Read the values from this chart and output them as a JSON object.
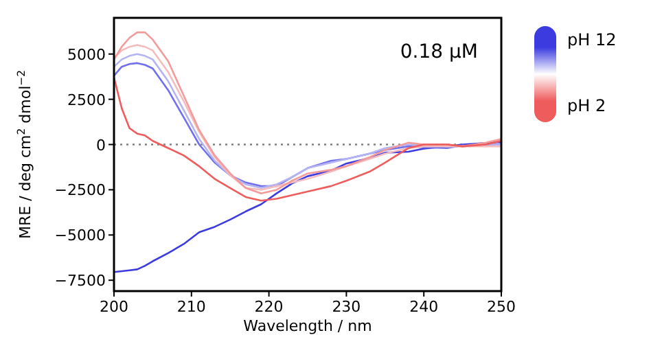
{
  "chart_data": {
    "type": "line",
    "xlabel": "Wavelength / nm",
    "ylabel": "MRE / deg cm$^{2}$ dmol$^{−2}$",
    "annotations": [
      "0.18 µM"
    ],
    "xlim": [
      200,
      250
    ],
    "xticks": [
      200,
      210,
      220,
      230,
      240,
      250
    ],
    "ylim": [
      -8100,
      7000
    ],
    "yticks": [
      {
        "value": -7500,
        "label": "−7500"
      },
      {
        "value": -5000,
        "label": "−5000"
      },
      {
        "value": -2500,
        "label": "−2500"
      },
      0,
      2500,
      5000
    ],
    "x": [
      200,
      201,
      202,
      203,
      204,
      205,
      207,
      209,
      211,
      213,
      215,
      217,
      219,
      221,
      223,
      225,
      228,
      230,
      233,
      235,
      238,
      240,
      243,
      245,
      248,
      250
    ],
    "series": [
      {
        "name": "pH 12",
        "color": "#3b3be0",
        "values": [
          -7050,
          -7000,
          -6950,
          -6900,
          -6700,
          -6450,
          -6000,
          -5500,
          -4850,
          -4550,
          -4150,
          -3700,
          -3300,
          -2700,
          -2150,
          -1750,
          -1450,
          -1050,
          -750,
          -450,
          -400,
          -230,
          -100,
          0,
          80,
          150
        ]
      },
      {
        "color": "#7070ec",
        "values": [
          3800,
          4300,
          4450,
          4500,
          4400,
          4200,
          3000,
          1500,
          0,
          -1000,
          -1700,
          -2100,
          -2300,
          -2300,
          -1800,
          -1300,
          -900,
          -800,
          -500,
          -300,
          -100,
          -150,
          -200,
          -50,
          -50,
          50
        ]
      },
      {
        "color": "#b4b4f4",
        "values": [
          4300,
          4700,
          4900,
          5000,
          4900,
          4700,
          3500,
          1900,
          300,
          -900,
          -1700,
          -2200,
          -2400,
          -2200,
          -1800,
          -1300,
          -1000,
          -800,
          -500,
          -200,
          0,
          -50,
          -100,
          -100,
          0,
          0
        ]
      },
      {
        "color": "#f4bcbc",
        "values": [
          4800,
          5200,
          5400,
          5500,
          5400,
          5200,
          4000,
          2400,
          700,
          -700,
          -1700,
          -2400,
          -2500,
          -2300,
          -2100,
          -1900,
          -1500,
          -1200,
          -800,
          -500,
          -200,
          -100,
          -100,
          -100,
          -100,
          -100
        ]
      },
      {
        "color": "#f49a9a",
        "values": [
          4700,
          5400,
          5900,
          6200,
          6200,
          5800,
          4600,
          2700,
          800,
          -600,
          -1600,
          -2400,
          -2700,
          -2500,
          -2000,
          -1600,
          -1400,
          -1200,
          -700,
          -300,
          100,
          0,
          0,
          -100,
          100,
          300
        ]
      },
      {
        "name": "pH 2",
        "color": "#ee5c5c",
        "values": [
          3700,
          2000,
          900,
          600,
          500,
          200,
          -200,
          -600,
          -1200,
          -1900,
          -2400,
          -2900,
          -3100,
          -3000,
          -2800,
          -2600,
          -2300,
          -2000,
          -1500,
          -1000,
          -200,
          0,
          0,
          -100,
          0,
          200
        ]
      }
    ],
    "ref_lines": [
      {
        "axis": "y",
        "value": 0,
        "color": "#808080",
        "line_style": "dotted"
      }
    ],
    "grid": false,
    "legend": "right",
    "line_style": "solid"
  }
}
